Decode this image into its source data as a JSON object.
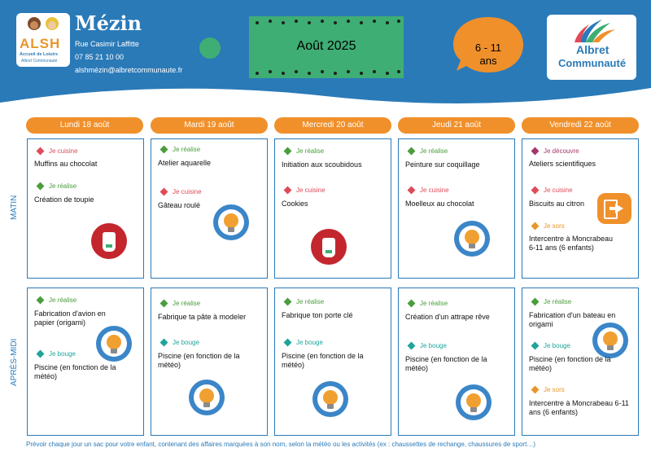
{
  "header": {
    "name": "Mézin",
    "address": "Rue Casimir Laffitte",
    "phone": "07 85 21 10 00",
    "email": "alshmézin@albretcommunaute.fr",
    "month": "Août 2025",
    "age": "6 - 11",
    "age_unit": "ans",
    "alsh_logo": {
      "letters": "ALSH",
      "line1": "Accueil de Loisirs",
      "line2": "Albret Communauté"
    },
    "albret_logo": {
      "line1": "Albret",
      "line2": "Communauté"
    }
  },
  "periods": {
    "morning": "MATIN",
    "afternoon": "APRÈS-MIDI"
  },
  "days": [
    {
      "label": "Lundi 18 août",
      "am": [
        {
          "tag": "Je cuisine",
          "activity": "Muffins au chocolat"
        },
        {
          "tag": "Je réalise",
          "activity": "Création de toupie"
        }
      ],
      "pm": [
        {
          "tag": "Je réalise",
          "activity": "Fabrication d'avion en papier (origami)"
        },
        {
          "tag": "Je bouge",
          "activity": "Piscine (en fonction de la météo)"
        }
      ]
    },
    {
      "label": "Mardi 19 août",
      "am": [
        {
          "tag": "Je réalise",
          "activity": "Atelier aquarelle"
        },
        {
          "tag": "Je cuisine",
          "activity": "Gâteau roulé"
        }
      ],
      "pm": [
        {
          "tag": "Je réalise",
          "activity": "Fabrique ta pâte à modeler"
        },
        {
          "tag": "Je bouge",
          "activity": "Piscine (en fonction de la météo)"
        }
      ]
    },
    {
      "label": "Mercredi 20 août",
      "am": [
        {
          "tag": "Je réalise",
          "activity": "Initiation aux scoubidous"
        },
        {
          "tag": "Je cuisine",
          "activity": "Cookies"
        }
      ],
      "pm": [
        {
          "tag": "Je réalise",
          "activity": "Fabrique ton porte clé"
        },
        {
          "tag": "Je bouge",
          "activity": "Piscine (en fonction de la météo)"
        }
      ]
    },
    {
      "label": "Jeudi 21 août",
      "am": [
        {
          "tag": "Je réalise",
          "activity": "Peinture sur coquillage"
        },
        {
          "tag": "Je cuisine",
          "activity": "Moelleux au chocolat"
        }
      ],
      "pm": [
        {
          "tag": "Je réalise",
          "activity": "Création d'un attrape rêve"
        },
        {
          "tag": "Je bouge",
          "activity": "Piscine (en fonction de la météo)"
        }
      ]
    },
    {
      "label": "Vendredi 22 août",
      "am": [
        {
          "tag": "Je découvre",
          "activity": "Ateliers scientifiques"
        },
        {
          "tag": "Je cuisine",
          "activity": "Biscuits au citron"
        },
        {
          "tag": "Je sors",
          "activity": "Intercentre à Moncrabeau 6-11 ans (6 enfants)"
        }
      ],
      "pm": [
        {
          "tag": "Je réalise",
          "activity": "Fabrication d'un bateau en origami"
        },
        {
          "tag": "Je bouge",
          "activity": "Piscine (en fonction de la météo)"
        },
        {
          "tag": "Je sors",
          "activity": "Intercentre à Moncrabeau 6-11 ans (6 enfants)"
        }
      ]
    }
  ],
  "footer": "Prévoir chaque jour un sac pour votre enfant, contenant des affaires marquées à son nom, selon la météo ou les activités (ex : chaussettes de rechange, chaussures de sport…)",
  "icons": [
    "lightbulb-brush-icon",
    "apron-icon",
    "exit-door-icon"
  ],
  "colors": {
    "blue": "#2a7ab8",
    "orange": "#f0902b",
    "green": "#3fae74",
    "cuisine": "#e04a59",
    "realise": "#4a9d3c",
    "bouge": "#1fa49a",
    "sors": "#e8962b",
    "decouvre": "#a3366b"
  }
}
